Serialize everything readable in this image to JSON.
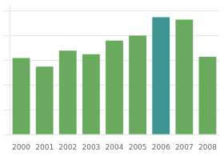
{
  "chart_data": {
    "type": "bar",
    "categories": [
      "2000",
      "2001",
      "2002",
      "2003",
      "2004",
      "2005",
      "2006",
      "2007",
      "2008"
    ],
    "values": [
      62,
      55,
      68,
      65,
      76,
      80,
      95,
      93,
      63
    ],
    "colors": [
      "#6aaa5e",
      "#6aaa5e",
      "#6aaa5e",
      "#6aaa5e",
      "#6aaa5e",
      "#6aaa5e",
      "#3d9490",
      "#6aaa5e",
      "#6aaa5e"
    ],
    "ylim": [
      0,
      105
    ],
    "yticks": [
      0,
      20,
      40,
      60,
      80,
      100
    ],
    "grid": true,
    "tick_labels": "x"
  }
}
